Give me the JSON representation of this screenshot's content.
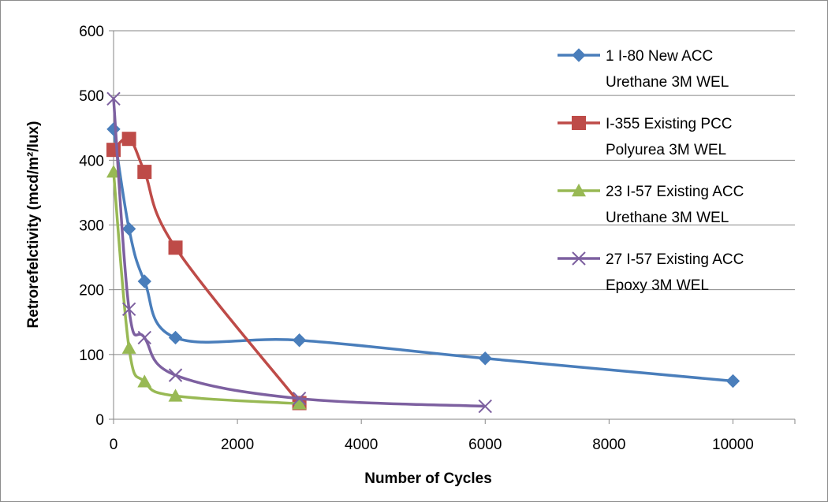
{
  "chart_data": {
    "type": "line",
    "title": "",
    "xlabel": "Number of Cycles",
    "ylabel": "Retrorefelctivity (mcd/m²/lux)",
    "xlim": [
      0,
      11000
    ],
    "ylim": [
      0,
      600
    ],
    "xticks": [
      0,
      2000,
      4000,
      6000,
      8000,
      10000
    ],
    "yticks": [
      0,
      100,
      200,
      300,
      400,
      500,
      600
    ],
    "grid": "horizontal",
    "legend_position": "right",
    "series": [
      {
        "name": "1 I-80 New ACC Urethane 3M WEL",
        "legend_lines": [
          "1 I-80 New ACC",
          "Urethane 3M WEL"
        ],
        "color": "#4a7ebb",
        "marker": "diamond",
        "x": [
          0,
          250,
          500,
          1000,
          3000,
          6000,
          10000
        ],
        "y": [
          448,
          294,
          213,
          126,
          122,
          94,
          59
        ]
      },
      {
        "name": "I-355 Existing PCC Polyurea 3M WEL",
        "legend_lines": [
          "I-355 Existing PCC",
          "Polyurea 3M WEL"
        ],
        "color": "#be4b48",
        "marker": "square",
        "x": [
          0,
          250,
          500,
          1000,
          3000
        ],
        "y": [
          416,
          433,
          382,
          265,
          25
        ]
      },
      {
        "name": "23 I-57 Existing ACC Urethane 3M WEL",
        "legend_lines": [
          "23 I-57 Existing ACC",
          "Urethane 3M WEL"
        ],
        "color": "#98b954",
        "marker": "triangle",
        "x": [
          0,
          250,
          500,
          1000,
          3000
        ],
        "y": [
          382,
          110,
          58,
          36,
          24
        ]
      },
      {
        "name": "27 I-57 Existing ACC Epoxy 3M WEL",
        "legend_lines": [
          "27 I-57 Existing ACC",
          "Epoxy 3M WEL"
        ],
        "color": "#7d60a0",
        "marker": "x",
        "x": [
          0,
          250,
          500,
          1000,
          3000,
          6000
        ],
        "y": [
          495,
          170,
          126,
          68,
          32,
          20
        ]
      }
    ]
  }
}
